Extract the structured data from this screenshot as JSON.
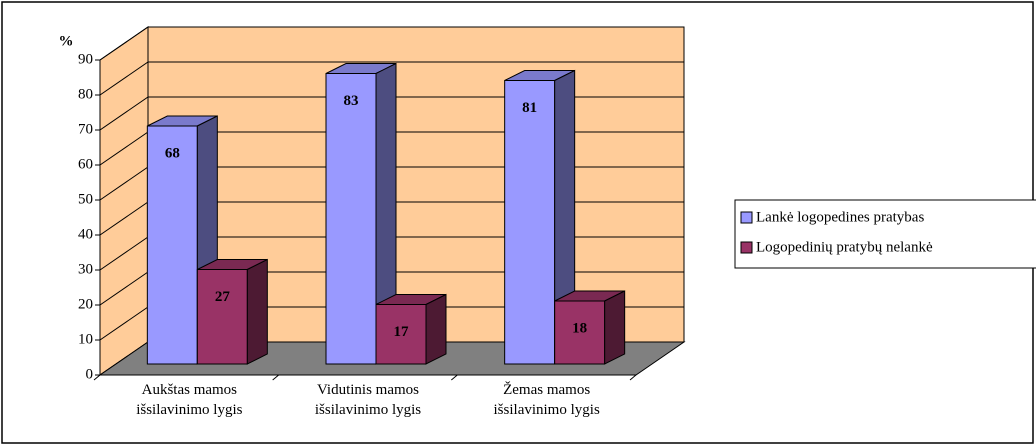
{
  "chart_data": {
    "type": "bar3d",
    "y_label": "%",
    "categories": [
      "Aukštas mamos išsilavinimo lygis",
      "Vidutinis mamos išsilavinimo lygis",
      "Žemas mamos išsilavinimo lygis"
    ],
    "series": [
      {
        "name": "Lankė logopedines pratybas",
        "color": "#9999ff",
        "values": [
          68,
          83,
          81
        ]
      },
      {
        "name": "Logopedinių pratybų nelankė",
        "color": "#993366",
        "values": [
          27,
          17,
          18
        ]
      }
    ],
    "ylim": [
      0,
      90
    ],
    "yticks": [
      0,
      10,
      20,
      30,
      40,
      50,
      60,
      70,
      80,
      90
    ],
    "grid": true,
    "legend": "right"
  }
}
